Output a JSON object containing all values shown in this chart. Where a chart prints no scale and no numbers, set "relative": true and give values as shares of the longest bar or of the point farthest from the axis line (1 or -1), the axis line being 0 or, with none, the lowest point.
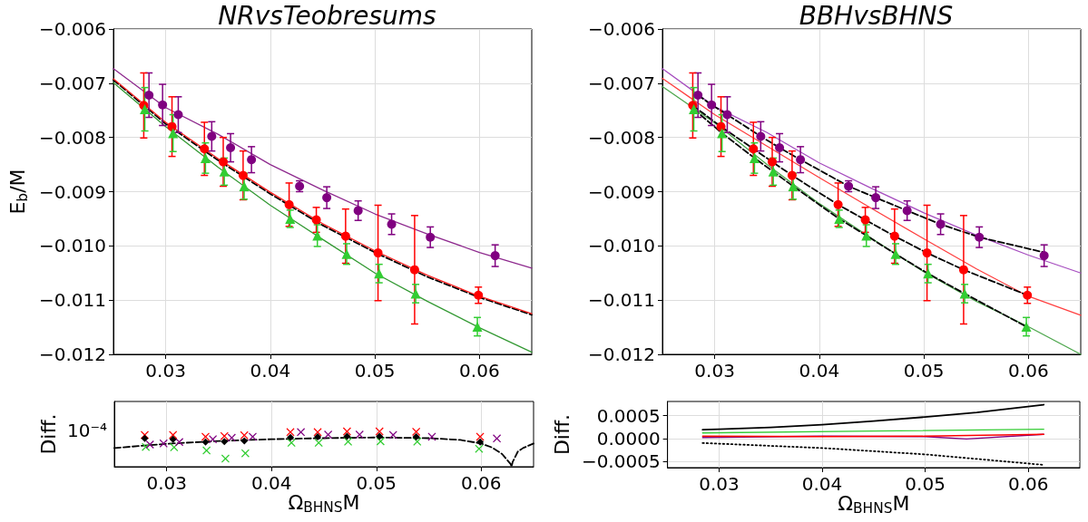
{
  "chart_data": [
    {
      "type": "scatter",
      "title": "NRvsTeobresums",
      "ylabel": "E$_{b}$/M",
      "xlim": [
        0.025,
        0.065
      ],
      "xticks": [
        0.03,
        0.04,
        0.05,
        0.06
      ],
      "ylim": [
        -0.012,
        -0.006
      ],
      "yticks": [
        {
          "value": -0.012,
          "label": "−0.012"
        },
        {
          "value": -0.011,
          "label": "−0.011"
        },
        {
          "value": -0.01,
          "label": "−0.010"
        },
        {
          "value": -0.009,
          "label": "−0.009"
        },
        {
          "value": -0.008,
          "label": "−0.008"
        },
        {
          "value": -0.007,
          "label": "−0.007"
        },
        {
          "value": -0.006,
          "label": "−0.006"
        }
      ],
      "grid": true,
      "series": [
        {
          "type": "line",
          "color": "#8e2a8e",
          "marker": "none",
          "line_style": "solid",
          "x": [
            0.025,
            0.03,
            0.035,
            0.04,
            0.045,
            0.05,
            0.055,
            0.06,
            0.065
          ],
          "values": [
            -0.00673,
            -0.00745,
            -0.00794,
            -0.0085,
            -0.00897,
            -0.00941,
            -0.00978,
            -0.01012,
            -0.01041
          ]
        },
        {
          "type": "line",
          "color": "#339933",
          "marker": "none",
          "line_style": "solid",
          "x": [
            0.025,
            0.03,
            0.035,
            0.04,
            0.045,
            0.05,
            0.055,
            0.06,
            0.065
          ],
          "values": [
            -0.00699,
            -0.0078,
            -0.00855,
            -0.00925,
            -0.00988,
            -0.0105,
            -0.01102,
            -0.01151,
            -0.01196
          ]
        },
        {
          "type": "line",
          "color": "#000000",
          "marker": "none",
          "line_style": "dashed",
          "x": [
            0.025,
            0.03,
            0.035,
            0.04,
            0.045,
            0.05,
            0.055,
            0.06,
            0.065
          ],
          "values": [
            -0.00694,
            -0.00775,
            -0.00842,
            -0.00904,
            -0.00962,
            -0.01012,
            -0.01057,
            -0.01095,
            -0.01127
          ]
        },
        {
          "type": "line",
          "color": "#ff2020",
          "marker": "none",
          "line_style": "solid",
          "x": [
            0.025,
            0.03,
            0.035,
            0.04,
            0.045,
            0.05,
            0.055,
            0.06,
            0.065
          ],
          "values": [
            -0.00692,
            -0.00772,
            -0.00839,
            -0.00901,
            -0.00959,
            -0.01009,
            -0.01054,
            -0.01093,
            -0.01125
          ]
        },
        {
          "type": "scatter",
          "color": "#800080",
          "marker": "circle",
          "x": [
            0.0284,
            0.0297,
            0.0312,
            0.0344,
            0.0362,
            0.0382,
            0.0428,
            0.0454,
            0.0484,
            0.0516,
            0.0553,
            0.0615
          ],
          "values": [
            -0.00722,
            -0.0074,
            -0.00758,
            -0.00798,
            -0.00819,
            -0.00841,
            -0.0089,
            -0.00911,
            -0.00935,
            -0.0096,
            -0.00984,
            -0.01018
          ],
          "errors": [
            0.00041,
            0.00038,
            0.00033,
            0.00027,
            0.00026,
            0.00024,
            0.0001,
            0.0002,
            0.00018,
            0.00019,
            0.00019,
            0.0002
          ]
        },
        {
          "type": "scatter",
          "color": "#ff0000",
          "marker": "circle",
          "x": [
            0.0279,
            0.0306,
            0.0337,
            0.0355,
            0.0374,
            0.0418,
            0.0444,
            0.0472,
            0.0503,
            0.0538,
            0.0599
          ],
          "values": [
            -0.00741,
            -0.0078,
            -0.00821,
            -0.00845,
            -0.0087,
            -0.00924,
            -0.00952,
            -0.00982,
            -0.01013,
            -0.01044,
            -0.01091
          ],
          "errors": [
            0.0006,
            0.00055,
            0.00049,
            0.00045,
            0.00045,
            0.0004,
            0.00023,
            0.0005,
            0.00088,
            0.001,
            0.00015
          ]
        },
        {
          "type": "scatter",
          "color": "#32cd32",
          "marker": "triangle",
          "x": [
            0.028,
            0.0307,
            0.0338,
            0.0356,
            0.0375,
            0.0419,
            0.0445,
            0.0473,
            0.0504,
            0.0539,
            0.0598
          ],
          "values": [
            -0.00748,
            -0.00792,
            -0.00838,
            -0.00863,
            -0.0089,
            -0.0095,
            -0.00981,
            -0.01015,
            -0.01051,
            -0.01088,
            -0.01149
          ],
          "errors": [
            0.0004,
            0.00034,
            0.00028,
            0.00025,
            0.00024,
            0.00016,
            0.0002,
            0.00019,
            0.00017,
            0.00017,
            0.00017
          ]
        }
      ]
    },
    {
      "type": "scatter",
      "title": "BBHvsBHNS",
      "xlim": [
        0.025,
        0.065
      ],
      "xticks": [
        0.03,
        0.04,
        0.05,
        0.06
      ],
      "ylim": [
        -0.012,
        -0.006
      ],
      "yticks": [
        {
          "value": -0.012,
          "label": "−0.012"
        },
        {
          "value": -0.011,
          "label": "−0.011"
        },
        {
          "value": -0.01,
          "label": "−0.010"
        },
        {
          "value": -0.009,
          "label": "−0.009"
        },
        {
          "value": -0.008,
          "label": "−0.008"
        },
        {
          "value": -0.007,
          "label": "−0.007"
        },
        {
          "value": -0.006,
          "label": "−0.006"
        }
      ],
      "grid": true,
      "series": [
        {
          "type": "line",
          "color": "#a64dbf",
          "marker": "none",
          "line_style": "solid",
          "x": [
            0.025,
            0.03,
            0.035,
            0.04,
            0.045,
            0.05,
            0.055,
            0.06,
            0.065
          ],
          "values": [
            -0.00673,
            -0.00743,
            -0.00791,
            -0.00847,
            -0.00894,
            -0.00939,
            -0.0098,
            -0.01017,
            -0.0105
          ]
        },
        {
          "type": "line",
          "color": "#ff4040",
          "marker": "none",
          "line_style": "solid",
          "x": [
            0.025,
            0.03,
            0.035,
            0.04,
            0.045,
            0.05,
            0.055,
            0.06,
            0.065
          ],
          "values": [
            -0.00691,
            -0.00758,
            -0.00816,
            -0.00874,
            -0.00931,
            -0.00987,
            -0.01042,
            -0.01093,
            -0.01128
          ]
        },
        {
          "type": "line",
          "color": "#4ca64c",
          "marker": "none",
          "line_style": "solid",
          "x": [
            0.025,
            0.03,
            0.035,
            0.04,
            0.045,
            0.05,
            0.055,
            0.06,
            0.065
          ],
          "values": [
            -0.00706,
            -0.00773,
            -0.0085,
            -0.00922,
            -0.00986,
            -0.01048,
            -0.01102,
            -0.01149,
            -0.012
          ]
        },
        {
          "type": "line",
          "color": "#000000",
          "marker": "none",
          "line_style": "dashed",
          "x": [
            0.0284,
            0.0297,
            0.0312,
            0.0344,
            0.0362,
            0.0382,
            0.0428,
            0.0454,
            0.0484,
            0.0516,
            0.0553,
            0.0615
          ],
          "values": [
            -0.00722,
            -0.0074,
            -0.00758,
            -0.00798,
            -0.00819,
            -0.00841,
            -0.0089,
            -0.00911,
            -0.00935,
            -0.0096,
            -0.00984,
            -0.01012
          ]
        },
        {
          "type": "line",
          "color": "#000000",
          "marker": "none",
          "line_style": "dashed",
          "x": [
            0.0279,
            0.0306,
            0.0337,
            0.0355,
            0.0374,
            0.0418,
            0.0444,
            0.0472,
            0.0503,
            0.0538,
            0.0599
          ],
          "values": [
            -0.00741,
            -0.0078,
            -0.00821,
            -0.00845,
            -0.0087,
            -0.00924,
            -0.00952,
            -0.00982,
            -0.01013,
            -0.01044,
            -0.01091
          ]
        },
        {
          "type": "line",
          "color": "#000000",
          "marker": "none",
          "line_style": "dashed",
          "x": [
            0.028,
            0.0307,
            0.0338,
            0.0356,
            0.0375,
            0.0419,
            0.0445,
            0.0473,
            0.0504,
            0.0539,
            0.0598
          ],
          "values": [
            -0.00748,
            -0.00792,
            -0.00838,
            -0.00863,
            -0.0089,
            -0.0095,
            -0.00981,
            -0.01015,
            -0.01051,
            -0.01088,
            -0.01149
          ]
        },
        {
          "type": "scatter",
          "color": "#800080",
          "marker": "circle",
          "x": [
            0.0284,
            0.0297,
            0.0312,
            0.0344,
            0.0362,
            0.0382,
            0.0428,
            0.0454,
            0.0484,
            0.0516,
            0.0553,
            0.0615
          ],
          "values": [
            -0.00722,
            -0.0074,
            -0.00758,
            -0.00798,
            -0.00819,
            -0.00841,
            -0.0089,
            -0.00911,
            -0.00935,
            -0.0096,
            -0.00984,
            -0.01018
          ],
          "errors": [
            0.00041,
            0.00038,
            0.00033,
            0.00027,
            0.00026,
            0.00024,
            0.0001,
            0.0002,
            0.00018,
            0.00019,
            0.00019,
            0.0002
          ]
        },
        {
          "type": "scatter",
          "color": "#ff0000",
          "marker": "circle",
          "x": [
            0.0279,
            0.0306,
            0.0337,
            0.0355,
            0.0374,
            0.0418,
            0.0444,
            0.0472,
            0.0503,
            0.0538,
            0.0599
          ],
          "values": [
            -0.00741,
            -0.0078,
            -0.00821,
            -0.00845,
            -0.0087,
            -0.00924,
            -0.00952,
            -0.00982,
            -0.01013,
            -0.01044,
            -0.01091
          ],
          "errors": [
            0.0006,
            0.00055,
            0.00049,
            0.00045,
            0.00045,
            0.0004,
            0.00023,
            0.0005,
            0.00088,
            0.001,
            0.00015
          ]
        },
        {
          "type": "scatter",
          "color": "#32cd32",
          "marker": "triangle",
          "x": [
            0.028,
            0.0307,
            0.0338,
            0.0356,
            0.0375,
            0.0419,
            0.0445,
            0.0473,
            0.0504,
            0.0539,
            0.0598
          ],
          "values": [
            -0.00748,
            -0.00792,
            -0.00838,
            -0.00863,
            -0.0089,
            -0.0095,
            -0.00981,
            -0.01015,
            -0.01051,
            -0.01088,
            -0.01149
          ],
          "errors": [
            0.0004,
            0.00034,
            0.00028,
            0.00025,
            0.00024,
            0.00016,
            0.0002,
            0.00019,
            0.00017,
            0.00017,
            0.00017
          ]
        }
      ]
    },
    {
      "type": "scatter",
      "xlabel": "Ω$_{BHNS}$M",
      "ylabel": "Diff.",
      "relative": true,
      "annotations": [
        "10⁻⁴"
      ],
      "xlim": [
        0.025,
        0.065
      ],
      "xticks": [
        0.03,
        0.04,
        0.05,
        0.06
      ],
      "grid": true,
      "series": [
        {
          "type": "line",
          "color": "#000000",
          "marker": "none",
          "line_style": "dashed",
          "x": [
            0.025,
            0.03,
            0.035,
            0.04,
            0.045,
            0.05,
            0.055,
            0.058,
            0.06,
            0.061,
            0.062,
            0.0628,
            0.0629,
            0.063,
            0.0635,
            0.064,
            0.065
          ],
          "values": [
            0.53,
            0.65,
            0.73,
            0.78,
            0.81,
            0.83,
            0.81,
            0.76,
            0.66,
            0.55,
            0.36,
            0.08,
            0,
            0.13,
            0.43,
            0.53,
            0.66
          ]
        },
        {
          "type": "scatter",
          "color": "#32cd32",
          "marker": "cross",
          "x": [
            0.028,
            0.0307,
            0.0338,
            0.0356,
            0.0375,
            0.0419,
            0.0445,
            0.0473,
            0.0504,
            0.0539,
            0.0598
          ],
          "values": [
            0.56,
            0.55,
            0.46,
            0.23,
            0.38,
            0.68,
            0.68,
            0.71,
            0.72,
            0.71,
            0.51
          ]
        },
        {
          "type": "scatter",
          "color": "#800080",
          "marker": "cross",
          "x": [
            0.0284,
            0.0297,
            0.0312,
            0.0344,
            0.0362,
            0.0382,
            0.0428,
            0.0454,
            0.0484,
            0.0516,
            0.0553,
            0.0615
          ],
          "values": [
            0.63,
            0.66,
            0.7,
            0.78,
            0.82,
            0.85,
            0.98,
            0.91,
            0.91,
            0.9,
            0.85,
            0.8
          ]
        },
        {
          "type": "scatter",
          "color": "#ff0000",
          "marker": "cross",
          "x": [
            0.0279,
            0.0306,
            0.0337,
            0.0355,
            0.0374,
            0.0418,
            0.0444,
            0.0472,
            0.0503,
            0.0538,
            0.0599
          ],
          "values": [
            0.9,
            0.9,
            0.85,
            0.87,
            0.89,
            0.98,
            0.98,
            1,
            1,
            0.99,
            0.85
          ]
        },
        {
          "type": "scatter",
          "color": "#000000",
          "marker": "diamond",
          "x": [
            0.0279,
            0.0306,
            0.0337,
            0.0355,
            0.0374,
            0.0418,
            0.0444,
            0.0472,
            0.0503,
            0.0538,
            0.0599
          ],
          "values": [
            0.8,
            0.78,
            0.7,
            0.71,
            0.73,
            0.83,
            0.85,
            0.86,
            0.86,
            0.85,
            0.7
          ]
        }
      ]
    },
    {
      "type": "line",
      "xlabel": "Ω$_{BHNS}$M",
      "ylabel": "Diff.",
      "xlim": [
        0.025,
        0.065
      ],
      "xticks": [
        0.03,
        0.04,
        0.05,
        0.06
      ],
      "ylim": [
        -0.00064,
        0.00081
      ],
      "yticks": [
        {
          "value": -0.0005,
          "label": "−0.0005"
        },
        {
          "value": 0,
          "label": "0.0000"
        },
        {
          "value": 0.0005,
          "label": "0.0005"
        }
      ],
      "grid": true,
      "series": [
        {
          "color": "#000000",
          "line_style": "solid",
          "x": [
            0.0284,
            0.03,
            0.035,
            0.04,
            0.045,
            0.05,
            0.055,
            0.0615
          ],
          "values": [
            0.00019,
            0.0002,
            0.00024,
            0.0003,
            0.00038,
            0.00047,
            0.00057,
            0.00074
          ]
        },
        {
          "color": "#33cc33",
          "line_style": "solid",
          "x": [
            0.0284,
            0.045,
            0.0615
          ],
          "values": [
            0.00012,
            0.00016,
            0.0002
          ]
        },
        {
          "color": "#800080",
          "line_style": "solid",
          "x": [
            0.0284,
            0.04,
            0.05,
            0.054,
            0.0615
          ],
          "values": [
            2e-05,
            5e-05,
            4e-05,
            -1e-05,
            9e-05
          ]
        },
        {
          "color": "#ff0000",
          "line_style": "solid",
          "x": [
            0.0284,
            0.04,
            0.05,
            0.0615
          ],
          "values": [
            5e-05,
            4e-05,
            5e-05,
            9e-05
          ]
        },
        {
          "color": "#000000",
          "line_style": "dotted",
          "x": [
            0.0284,
            0.04,
            0.05,
            0.0615
          ],
          "values": [
            -0.0001,
            -0.00021,
            -0.00035,
            -0.00058
          ]
        }
      ]
    }
  ]
}
